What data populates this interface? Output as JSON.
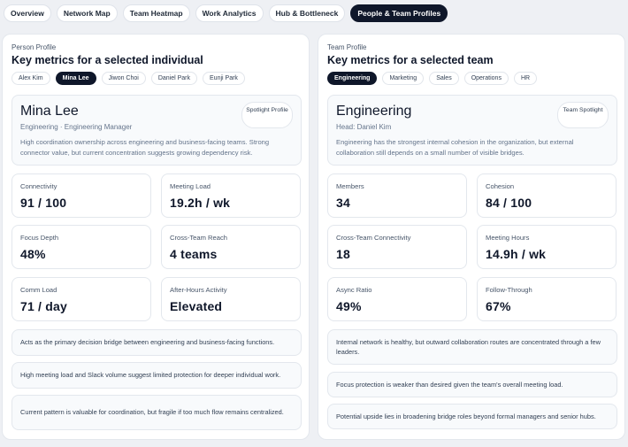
{
  "nav": {
    "tabs": [
      {
        "label": "Overview"
      },
      {
        "label": "Network Map"
      },
      {
        "label": "Team Heatmap"
      },
      {
        "label": "Work Analytics"
      },
      {
        "label": "Hub & Bottleneck"
      },
      {
        "label": "People & Team Profiles"
      }
    ],
    "active": "People & Team Profiles"
  },
  "person": {
    "eyebrow": "Person Profile",
    "heading": "Key metrics for a selected individual",
    "chips": [
      "Alex Kim",
      "Mina Lee",
      "Jiwon Choi",
      "Daniel Park",
      "Eunji Park"
    ],
    "selected": "Mina Lee",
    "name": "Mina Lee",
    "subtitle": "Engineering · Engineering Manager",
    "badge": "Spotlight Profile",
    "description": "High coordination ownership across engineering and business-facing teams. Strong connector value, but current concentration suggests growing dependency risk.",
    "metrics": [
      {
        "label": "Connectivity",
        "value": "91 / 100"
      },
      {
        "label": "Meeting Load",
        "value": "19.2h / wk"
      },
      {
        "label": "Focus Depth",
        "value": "48%"
      },
      {
        "label": "Cross-Team Reach",
        "value": "4 teams"
      },
      {
        "label": "Comm Load",
        "value": "71 / day"
      },
      {
        "label": "After-Hours Activity",
        "value": "Elevated"
      }
    ],
    "notes": [
      "Acts as the primary decision bridge between engineering and business-facing functions.",
      "High meeting load and Slack volume suggest limited protection for deeper individual work.",
      "Current pattern is valuable for coordination, but fragile if too much flow remains centralized."
    ]
  },
  "team": {
    "eyebrow": "Team Profile",
    "heading": "Key metrics for a selected team",
    "chips": [
      "Engineering",
      "Marketing",
      "Sales",
      "Operations",
      "HR"
    ],
    "selected": "Engineering",
    "name": "Engineering",
    "subtitle": "Head: Daniel Kim",
    "badge": "Team Spotlight",
    "description": "Engineering has the strongest internal cohesion in the organization, but external collaboration still depends on a small number of visible bridges.",
    "metrics": [
      {
        "label": "Members",
        "value": "34"
      },
      {
        "label": "Cohesion",
        "value": "84 / 100"
      },
      {
        "label": "Cross-Team Connectivity",
        "value": "18"
      },
      {
        "label": "Meeting Hours",
        "value": "14.9h / wk"
      },
      {
        "label": "Async Ratio",
        "value": "49%"
      },
      {
        "label": "Follow-Through",
        "value": "67%"
      }
    ],
    "notes": [
      "Internal network is healthy, but outward collaboration routes are concentrated through a few leaders.",
      "Focus protection is weaker than desired given the team's overall meeting load.",
      "Potential upside lies in broadening bridge roles beyond formal managers and senior hubs."
    ]
  }
}
